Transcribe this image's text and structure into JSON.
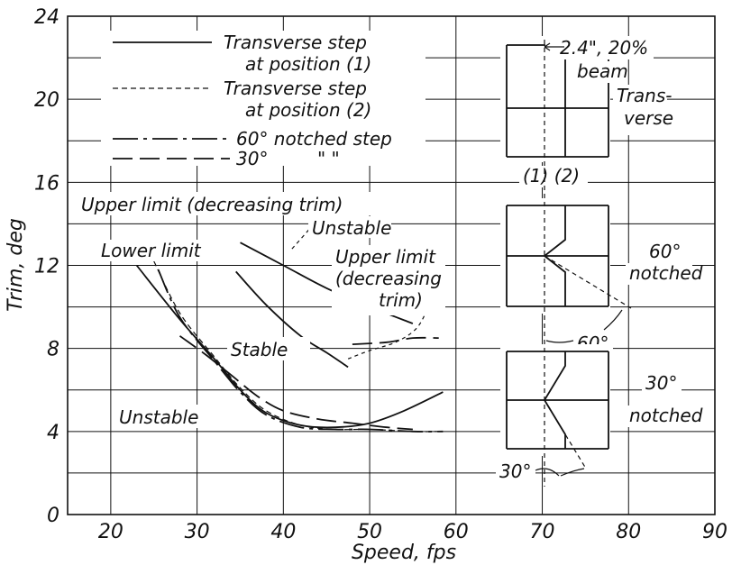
{
  "chart_data": {
    "type": "line",
    "xlabel": "Speed, fps",
    "ylabel": "Trim, deg",
    "xlim": [
      15,
      90
    ],
    "ylim": [
      0,
      24
    ],
    "x_ticks": [
      20,
      30,
      40,
      50,
      60,
      70,
      80,
      90
    ],
    "y_ticks": [
      0,
      4,
      8,
      12,
      16,
      20,
      24
    ],
    "grid": true,
    "legend": {
      "placement": "top-left",
      "entries": [
        {
          "line1": "Transverse step",
          "line2": "at position (1)",
          "style": "solid"
        },
        {
          "line1": "Transverse step",
          "line2": "at position (2)",
          "style": "dashed"
        },
        {
          "line1": "60° notched step",
          "line2": "",
          "style": "dashdot"
        },
        {
          "line1": "30°",
          "line2": "\"          \"",
          "style": "longdash"
        }
      ]
    },
    "series": [
      {
        "style": "solid",
        "group": "lower",
        "x": [
          23,
          28,
          32,
          35,
          38,
          42,
          46,
          50,
          54,
          58.5
        ],
        "y": [
          12,
          9.4,
          7.5,
          6.0,
          4.9,
          4.3,
          4.2,
          4.4,
          5.0,
          5.9
        ]
      },
      {
        "style": "dashed",
        "group": "lower",
        "x": [
          25,
          28,
          32,
          35,
          38,
          42,
          46,
          50,
          55,
          58
        ],
        "y": [
          12.2,
          9.7,
          7.6,
          6.1,
          5.0,
          4.3,
          4.1,
          4.1,
          4.0,
          4.0
        ]
      },
      {
        "style": "dashdot",
        "group": "lower",
        "x": [
          25.5,
          28,
          32,
          35,
          38,
          42,
          46,
          50,
          55,
          58.5
        ],
        "y": [
          11.8,
          9.5,
          7.4,
          5.9,
          4.8,
          4.2,
          4.1,
          4.1,
          4.0,
          4.0
        ]
      },
      {
        "style": "longdash",
        "group": "lower",
        "x": [
          28,
          31,
          34,
          37,
          40,
          44,
          48,
          52,
          55
        ],
        "y": [
          8.6,
          7.7,
          6.7,
          5.7,
          5.0,
          4.6,
          4.4,
          4.2,
          4.1
        ]
      },
      {
        "style": "solid",
        "group": "upper",
        "x": [
          35,
          40,
          45,
          50,
          55
        ],
        "y": [
          13.1,
          12.0,
          10.9,
          10.0,
          9.2
        ]
      },
      {
        "style": "solid",
        "group": "upper",
        "x": [
          34.5,
          38,
          42,
          45,
          47.5
        ],
        "y": [
          11.7,
          10.1,
          8.6,
          7.8,
          7.1
        ]
      },
      {
        "style": "longdash",
        "group": "upper",
        "x": [
          48,
          52,
          55,
          58
        ],
        "y": [
          8.2,
          8.3,
          8.5,
          8.5
        ]
      },
      {
        "style": "thindash",
        "group": "upper",
        "x": [
          47.5,
          50,
          53,
          55.5,
          57
        ],
        "y": [
          7.5,
          7.9,
          8.3,
          9.0,
          10.2
        ]
      },
      {
        "style": "thindash",
        "group": "upper",
        "x": [
          41,
          42.5,
          43.5
        ],
        "y": [
          12.8,
          13.5,
          14.0
        ]
      }
    ],
    "annotations": {
      "upper_title": "Upper limit (decreasing trim)",
      "unstable_top": "Unstable",
      "lower_limit": "Lower limit",
      "upper_limit_l1": "Upper limit",
      "upper_limit_l2": "(decreasing",
      "upper_limit_l3": "trim)",
      "stable": "Stable",
      "unstable_bottom": "Unstable"
    },
    "sketches": {
      "dim_label": "2.4\", 20%",
      "beam": "beam",
      "trans1": "Trans-",
      "trans2": "verse",
      "positions": "(1) (2)",
      "notched60a": "60°",
      "notched60b": "notched",
      "angle60": "60°",
      "notched30a": "30°",
      "notched30b": "notched",
      "angle30": "30°"
    }
  }
}
